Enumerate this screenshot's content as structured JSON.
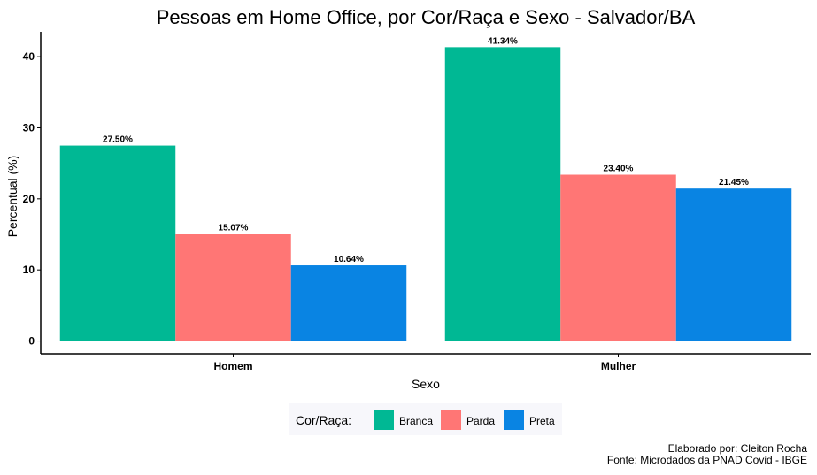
{
  "chart_data": {
    "type": "bar",
    "title": "Pessoas em Home Office, por Cor/Raça e Sexo - Salvador/BA",
    "xlabel": "Sexo",
    "ylabel": "Percentual (%)",
    "categories": [
      "Homem",
      "Mulher"
    ],
    "series": [
      {
        "name": "Branca",
        "color": "#00b894",
        "values": [
          27.5,
          41.34
        ],
        "labels": [
          "27.50%",
          "41.34%"
        ]
      },
      {
        "name": "Parda",
        "color": "#ff7675",
        "values": [
          15.07,
          23.4
        ],
        "labels": [
          "15.07%",
          "23.40%"
        ]
      },
      {
        "name": "Preta",
        "color": "#0984e3",
        "values": [
          10.64,
          21.45
        ],
        "labels": [
          "10.64%",
          "21.45%"
        ]
      }
    ],
    "yticks": [
      0,
      10,
      20,
      30,
      40
    ],
    "ylim": [
      -1.8,
      43.5
    ],
    "grid": false,
    "legend": {
      "title": "Cor/Raça:",
      "placement": "bottom"
    },
    "caption": [
      "Elaborado por: Cleiton Rocha",
      "Fonte: Microdados da PNAD Covid - IBGE"
    ]
  }
}
